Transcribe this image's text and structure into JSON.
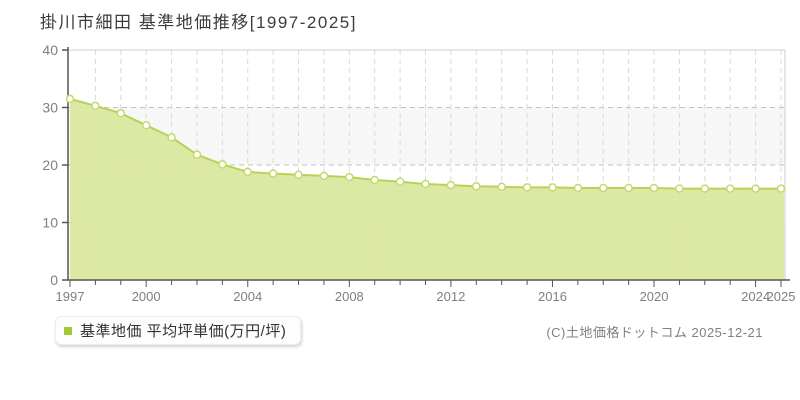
{
  "title": "掛川市細田 基準地価推移[1997-2025]",
  "legend": {
    "label": "基準地価 平均坪単価(万円/坪)",
    "marker_color": "#a5c935"
  },
  "copyright": "(C)土地価格ドットコム 2025-12-21",
  "colors": {
    "area_fill": "#d9e79d",
    "line": "#b6d354",
    "marker_fill": "#ffffff",
    "marker_stroke": "#c3da6e",
    "grid_horizontal": "#c2c2c2",
    "grid_vertical": "#d9d9d9",
    "band": "#f7f7f7",
    "axis": "#555555",
    "frame": "#cccccc",
    "tick_label": "#808080"
  },
  "chart_data": {
    "type": "area",
    "title": "掛川市細田 基準地価推移[1997-2025]",
    "xlabel": "",
    "ylabel": "",
    "ylim": [
      0,
      40
    ],
    "yticks": [
      0,
      10,
      20,
      30,
      40
    ],
    "grid": true,
    "legend_position": "bottom-left",
    "x": [
      1997,
      1998,
      1999,
      2000,
      2001,
      2002,
      2003,
      2004,
      2005,
      2006,
      2007,
      2008,
      2009,
      2010,
      2011,
      2012,
      2013,
      2014,
      2015,
      2016,
      2017,
      2018,
      2019,
      2020,
      2021,
      2022,
      2023,
      2024,
      2025
    ],
    "xtick_labels": [
      "1997",
      "2000",
      "2004",
      "2008",
      "2012",
      "2016",
      "2020",
      "2024",
      "2025"
    ],
    "series": [
      {
        "name": "基準地価 平均坪単価(万円/坪)",
        "values": [
          31.5,
          30.3,
          29.0,
          26.9,
          24.8,
          21.8,
          20.1,
          18.8,
          18.5,
          18.3,
          18.1,
          17.9,
          17.4,
          17.1,
          16.7,
          16.5,
          16.3,
          16.2,
          16.1,
          16.1,
          16.0,
          16.0,
          16.0,
          16.0,
          15.9,
          15.9,
          15.9,
          15.9,
          15.9
        ]
      }
    ]
  }
}
